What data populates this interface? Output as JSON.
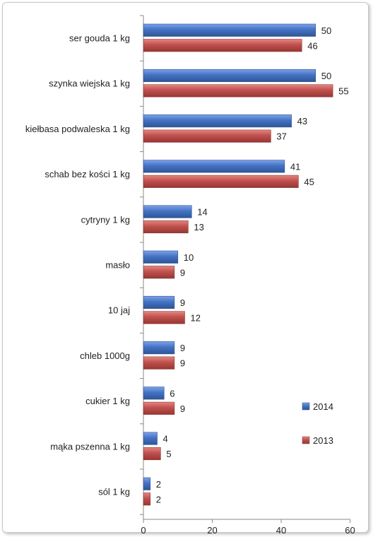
{
  "chart_data": {
    "type": "bar",
    "orientation": "horizontal",
    "categories": [
      "ser gouda 1 kg",
      "szynka wiejska 1 kg",
      "kiełbasa podwaleska 1 kg",
      "schab bez kości 1 kg",
      "cytryny 1 kg",
      "masło",
      "10 jaj",
      "chleb 1000g",
      "cukier 1 kg",
      "mąka pszenna 1 kg",
      "sól 1 kg"
    ],
    "series": [
      {
        "name": "2014",
        "color": "#4472c4",
        "values": [
          50,
          50,
          43,
          41,
          14,
          10,
          9,
          9,
          6,
          4,
          2
        ]
      },
      {
        "name": "2013",
        "color": "#c0504d",
        "values": [
          46,
          55,
          37,
          45,
          13,
          9,
          12,
          9,
          9,
          5,
          2
        ]
      }
    ],
    "xlim": [
      0,
      60
    ],
    "xticks": [
      0,
      20,
      40,
      60
    ],
    "legend_position": "right",
    "grid": false
  }
}
